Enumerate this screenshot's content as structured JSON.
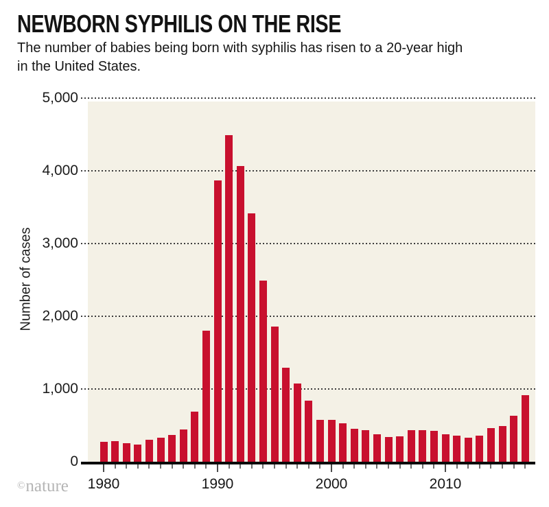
{
  "header": {
    "title": "NEWBORN SYPHILIS ON THE RISE",
    "subtitle_lines": [
      "The number of babies being born with syphilis has risen to a 20-year high",
      "in the United States."
    ]
  },
  "footer": {
    "credit_symbol": "©",
    "credit_name": "nature"
  },
  "colors": {
    "bar": "#c8102e",
    "plot_background": "#f4f1e6",
    "axis": "#0a0a0a",
    "credit_gray": "#b5b5b5"
  },
  "chart_data": {
    "type": "bar",
    "title": "NEWBORN SYPHILIS ON THE RISE",
    "subtitle": "The number of babies being born with syphilis has risen to a 20-year high in the United States.",
    "xlabel": "",
    "ylabel": "Number of cases",
    "ylim": [
      0,
      5000
    ],
    "grid": "horizontal-dotted",
    "legend": "none",
    "x": [
      1980,
      1981,
      1982,
      1983,
      1984,
      1985,
      1986,
      1987,
      1988,
      1989,
      1990,
      1991,
      1992,
      1993,
      1994,
      1995,
      1996,
      1997,
      1998,
      1999,
      2000,
      2001,
      2002,
      2003,
      2004,
      2005,
      2006,
      2007,
      2008,
      2009,
      2010,
      2011,
      2012,
      2013,
      2014,
      2015,
      2016,
      2017
    ],
    "values": [
      277,
      287,
      259,
      239,
      305,
      329,
      365,
      444,
      691,
      1807,
      3865,
      4490,
      4067,
      3413,
      2490,
      1863,
      1290,
      1077,
      843,
      579,
      578,
      529,
      451,
      432,
      375,
      339,
      349,
      430,
      431,
      427,
      377,
      360,
      334,
      362,
      462,
      492,
      628,
      918
    ],
    "y_ticks": [
      {
        "label": "0",
        "value": 0
      },
      {
        "label": "1,000",
        "value": 1000
      },
      {
        "label": "2,000",
        "value": 2000
      },
      {
        "label": "3,000",
        "value": 3000
      },
      {
        "label": "4,000",
        "value": 4000
      },
      {
        "label": "5,000",
        "value": 5000
      }
    ],
    "x_decade_ticks": [
      {
        "label": "1980",
        "year": 1980
      },
      {
        "label": "1990",
        "year": 1990
      },
      {
        "label": "2000",
        "year": 2000
      },
      {
        "label": "2010",
        "year": 2010
      }
    ]
  }
}
